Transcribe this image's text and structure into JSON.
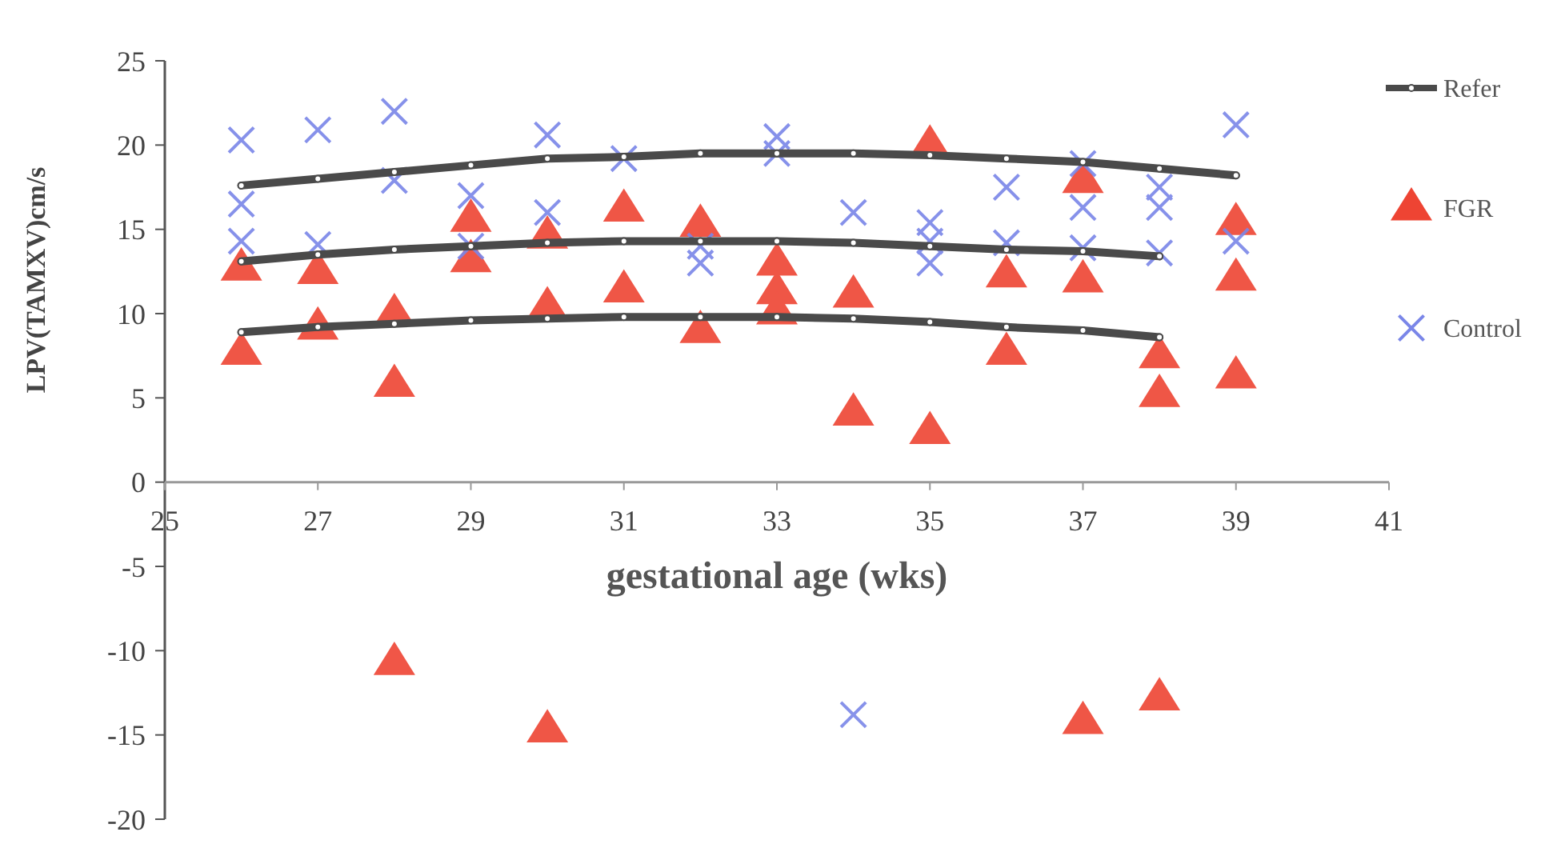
{
  "chart_data": {
    "type": "scatter",
    "xlabel": "gestational age (wks)",
    "ylabel": "LPV(TAMXV)cm/s",
    "xlim": [
      25,
      41
    ],
    "xticks": [
      25,
      27,
      29,
      31,
      33,
      35,
      37,
      39,
      41
    ],
    "ylim": [
      -20,
      25
    ],
    "yticks": [
      -20,
      -15,
      -10,
      -5,
      0,
      5,
      10,
      15,
      20,
      25
    ],
    "grid": false,
    "legend": "right",
    "series": [
      {
        "name": "Refer",
        "type": "line",
        "color": "#4a4a4a",
        "marker": "circle",
        "x": [
          26,
          27,
          28,
          29,
          30,
          31,
          32,
          33,
          34,
          35,
          36,
          37,
          38,
          39
        ],
        "values": [
          17.6,
          18.0,
          18.4,
          18.8,
          19.2,
          19.3,
          19.5,
          19.5,
          19.5,
          19.4,
          19.2,
          19.0,
          18.6,
          18.2
        ]
      },
      {
        "type": "line",
        "color": "#4a4a4a",
        "marker": "circle",
        "x": [
          26,
          27,
          28,
          29,
          30,
          31,
          32,
          33,
          34,
          35,
          36,
          37,
          38
        ],
        "values": [
          13.1,
          13.5,
          13.8,
          14.0,
          14.2,
          14.3,
          14.3,
          14.3,
          14.2,
          14.0,
          13.8,
          13.7,
          13.4
        ]
      },
      {
        "type": "line",
        "color": "#4a4a4a",
        "marker": "circle",
        "x": [
          26,
          27,
          28,
          29,
          30,
          31,
          32,
          33,
          34,
          35,
          36,
          37,
          38
        ],
        "values": [
          8.9,
          9.2,
          9.4,
          9.6,
          9.7,
          9.8,
          9.8,
          9.8,
          9.7,
          9.5,
          9.2,
          9.0,
          8.6
        ]
      },
      {
        "name": "FGR",
        "color": "#ee4433",
        "marker": "triangle",
        "x": [
          26,
          26,
          27,
          27,
          28,
          28,
          28,
          29,
          29,
          30,
          30,
          30,
          31,
          31,
          32,
          32,
          33,
          33,
          33,
          34,
          34,
          35,
          35,
          36,
          36,
          37,
          37,
          37,
          38,
          38,
          38,
          39,
          39,
          39
        ],
        "values": [
          12.7,
          7.7,
          12.5,
          9.2,
          10.0,
          5.8,
          -10.7,
          15.6,
          13.2,
          14.6,
          10.4,
          -14.7,
          16.2,
          11.4,
          15.3,
          9.0,
          13.0,
          11.3,
          10.1,
          11.1,
          4.1,
          20.0,
          3.0,
          12.3,
          7.7,
          17.9,
          12.0,
          -14.2,
          7.5,
          5.2,
          -12.8,
          15.4,
          12.1,
          6.3
        ]
      },
      {
        "name": "Control",
        "color": "#7a86e8",
        "marker": "cross",
        "x": [
          26,
          26,
          26,
          27,
          27,
          28,
          28,
          29,
          29,
          30,
          30,
          31,
          32,
          32,
          33,
          33,
          34,
          34,
          35,
          35,
          35,
          36,
          36,
          37,
          37,
          37,
          38,
          38,
          38,
          39,
          39
        ],
        "values": [
          20.3,
          16.5,
          14.3,
          20.9,
          14.1,
          22.0,
          17.9,
          17.0,
          14.0,
          20.6,
          16.0,
          19.2,
          14.0,
          13.0,
          20.5,
          19.5,
          16.0,
          -13.8,
          15.4,
          14.3,
          13.0,
          17.5,
          14.2,
          18.9,
          16.3,
          13.9,
          17.5,
          16.3,
          13.6,
          21.2,
          14.3
        ]
      }
    ]
  }
}
